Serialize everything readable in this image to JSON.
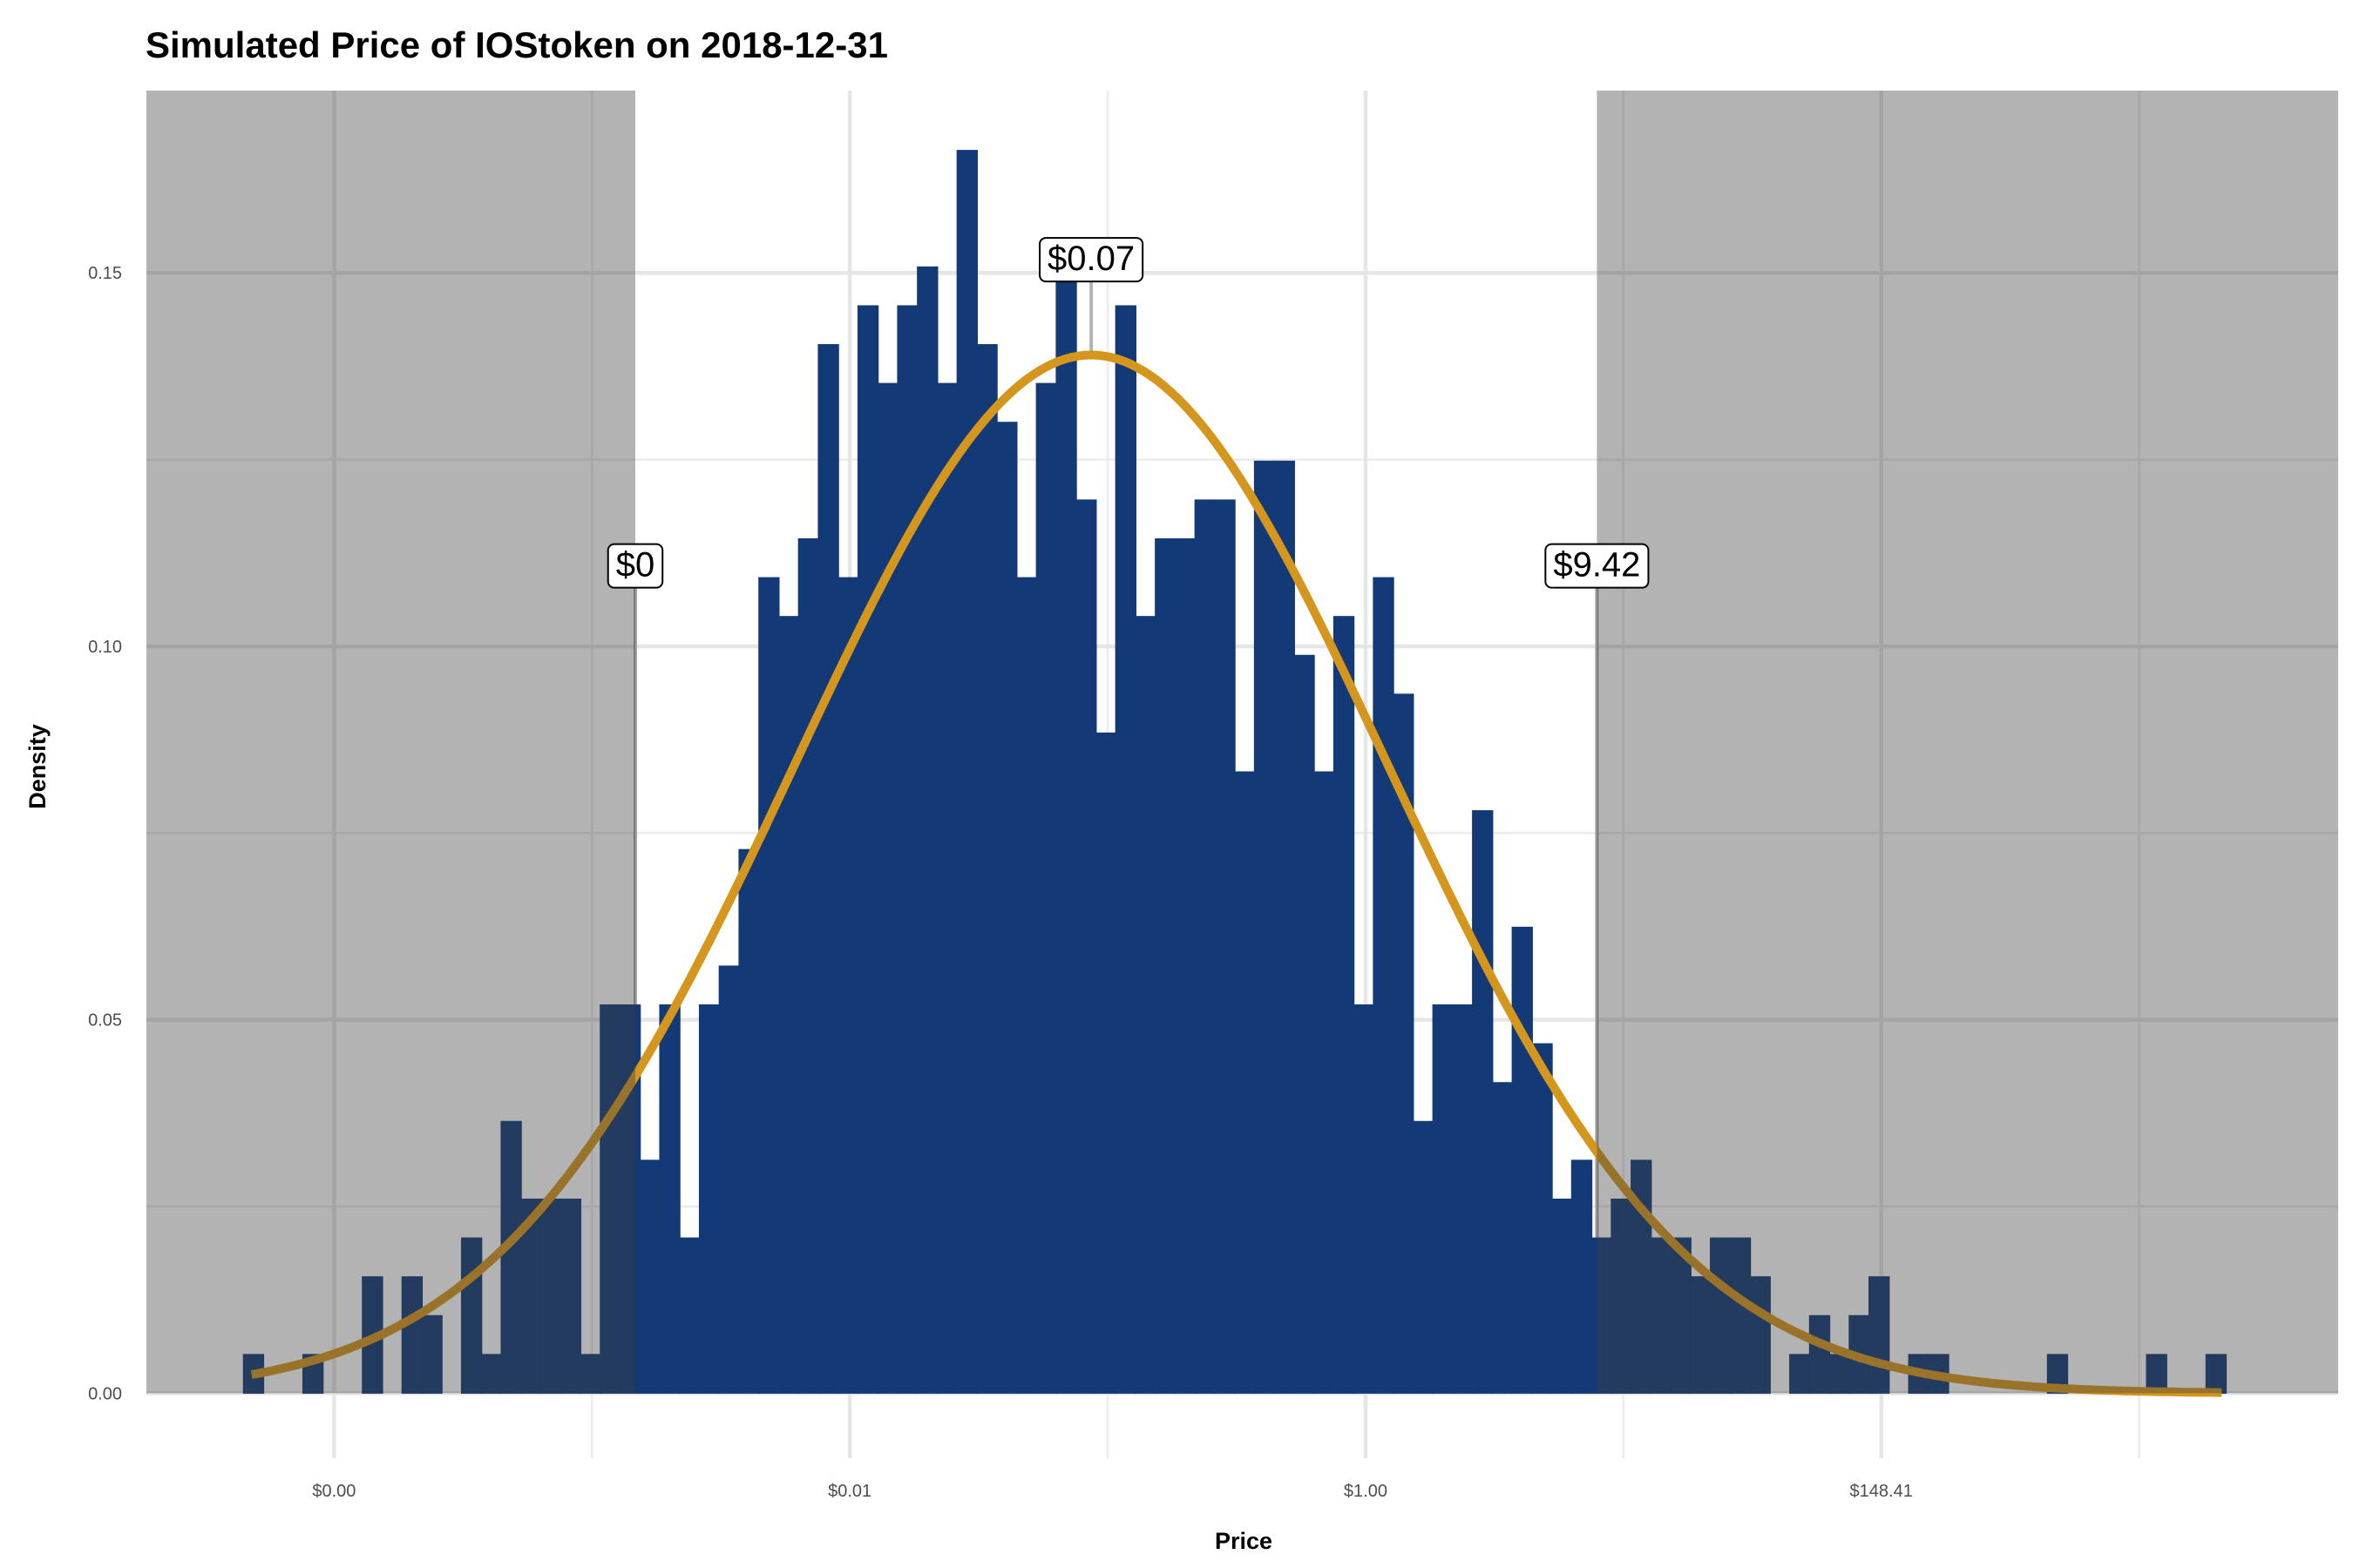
{
  "chart_data": {
    "type": "bar",
    "title": "Simulated Price of IOStoken on 2018-12-31",
    "xlabel": "Price",
    "ylabel": "Density",
    "x_scale": "log (natural)",
    "xlim_log": [
      -11.82,
      9.43
    ],
    "ylim": [
      -0.0087,
      0.1744
    ],
    "grid": true,
    "y_ticks": [
      {
        "value": 0.0,
        "label": "0.00"
      },
      {
        "value": 0.05,
        "label": "0.05"
      },
      {
        "value": 0.1,
        "label": "0.10"
      },
      {
        "value": 0.15,
        "label": "0.15"
      }
    ],
    "x_ticks": [
      {
        "value_log": -10,
        "label": "$0.00"
      },
      {
        "value_log": -5,
        "label": "$0.01"
      },
      {
        "value_log": 0,
        "label": "$1.00"
      },
      {
        "value_log": 5,
        "label": "$148.41"
      }
    ],
    "histogram": {
      "bin_start_log": -10.88,
      "bin_width_log": 0.1922,
      "color": "#133A76",
      "density": [
        0.0052,
        0,
        0,
        0.0052,
        0,
        0,
        0.0156,
        0,
        0.0156,
        0.0104,
        0,
        0.0208,
        0.0052,
        0.0364,
        0.026,
        0.026,
        0.026,
        0.0052,
        0.052,
        0.052,
        0.0312,
        0.052,
        0.0208,
        0.052,
        0.0572,
        0.0728,
        0.1092,
        0.104,
        0.1144,
        0.1404,
        0.1092,
        0.1456,
        0.1352,
        0.1456,
        0.1508,
        0.1352,
        0.1664,
        0.1404,
        0.13,
        0.1092,
        0.1352,
        0.1508,
        0.1196,
        0.0884,
        0.1456,
        0.104,
        0.1144,
        0.1144,
        0.1196,
        0.1196,
        0.0832,
        0.1248,
        0.1248,
        0.0988,
        0.0832,
        0.104,
        0.052,
        0.1092,
        0.0936,
        0.0364,
        0.052,
        0.052,
        0.078,
        0.0416,
        0.0624,
        0.0468,
        0.026,
        0.0312,
        0.0208,
        0.026,
        0.0312,
        0.0208,
        0.0208,
        0.0156,
        0.0208,
        0.0208,
        0.0156,
        0,
        0.0052,
        0.0104,
        0.0052,
        0.0104,
        0.0156,
        0,
        0.0052,
        0.0052,
        0,
        0,
        0,
        0,
        0,
        0.0052,
        0,
        0,
        0,
        0,
        0.0052,
        0,
        0,
        0.0052
      ]
    },
    "fit_curve": {
      "type": "normal density on log price",
      "mean_log": -2.66,
      "sd_log": 2.87,
      "range_log": [
        -10.8,
        8.3
      ],
      "color": "#D4961C"
    },
    "shaded_regions": [
      {
        "from_log": "min",
        "to_log": -7.08
      },
      {
        "from_log": 2.243,
        "to_log": "max"
      }
    ],
    "annotations": [
      {
        "label": "$0",
        "x_log": -7.08,
        "y": 0.111,
        "line": "from-zero"
      },
      {
        "label": "$0.07",
        "x_log": -2.66,
        "y": 0.152,
        "line": "from-curve"
      },
      {
        "label": "$9.42",
        "x_log": 2.243,
        "y": 0.111,
        "line": "from-zero"
      }
    ]
  }
}
